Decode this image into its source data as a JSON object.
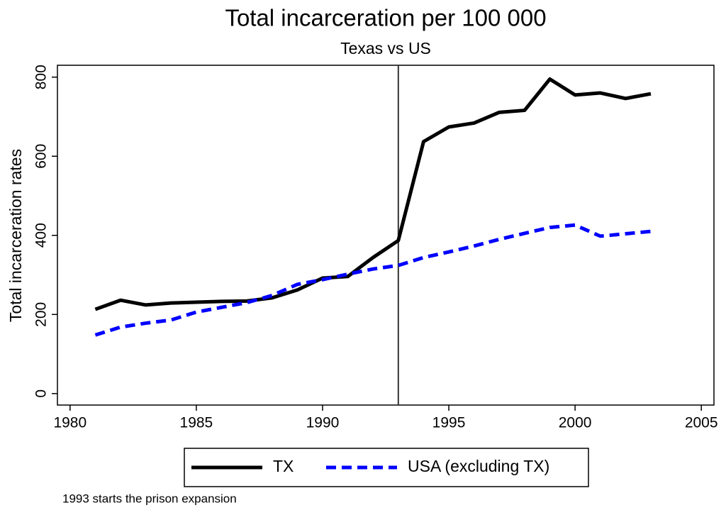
{
  "chart_data": {
    "type": "line",
    "title": "Total incarceration per 100 000",
    "subtitle": "Texas vs US",
    "y_label": "Total incarceration rates",
    "note": "1993 starts the prison expansion",
    "x": [
      1981,
      1982,
      1983,
      1984,
      1985,
      1986,
      1987,
      1988,
      1989,
      1990,
      1991,
      1992,
      1993,
      1994,
      1995,
      1996,
      1997,
      1998,
      1999,
      2000,
      2001,
      2002,
      2003
    ],
    "series": [
      {
        "name": "TX",
        "color": "#000000",
        "dash": false,
        "values": [
          213,
          236,
          224,
          229,
          231,
          233,
          234,
          242,
          262,
          292,
          296,
          344,
          387,
          637,
          674,
          684,
          711,
          716,
          795,
          755,
          760,
          746,
          758
        ]
      },
      {
        "name": "USA (excluding TX)",
        "color": "#0000ff",
        "dash": true,
        "values": [
          148,
          168,
          178,
          186,
          206,
          218,
          230,
          248,
          276,
          288,
          302,
          315,
          324,
          344,
          358,
          373,
          390,
          405,
          420,
          426,
          398,
          404,
          410
        ]
      }
    ],
    "xline": 1993,
    "xlim": [
      1979.5,
      2005.5
    ],
    "xticks": [
      1980,
      1985,
      1990,
      1995,
      2000,
      2005
    ],
    "ylim": [
      -29,
      830
    ],
    "yticks": [
      0,
      200,
      400,
      600,
      800
    ],
    "grid": false,
    "legend": "bottom"
  }
}
